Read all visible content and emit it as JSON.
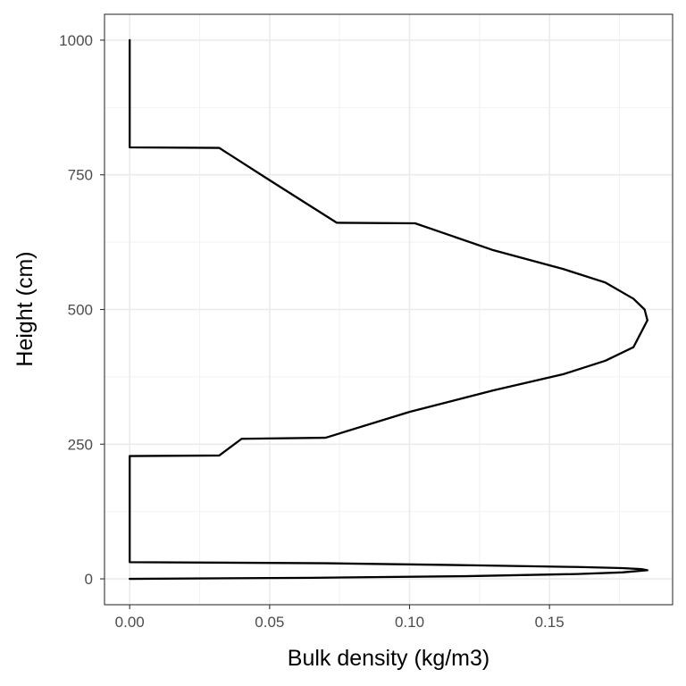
{
  "chart_data": {
    "type": "line",
    "xlabel": "Bulk density (kg/m3)",
    "ylabel": "Height (cm)",
    "xlim": [
      -0.009,
      0.194
    ],
    "ylim": [
      -48,
      1048
    ],
    "x_ticks": [
      0.0,
      0.05,
      0.1,
      0.15
    ],
    "x_tick_labels": [
      "0.00",
      "0.05",
      "0.10",
      "0.15"
    ],
    "y_ticks": [
      0,
      250,
      500,
      750,
      1000
    ],
    "y_tick_labels": [
      "0",
      "250",
      "500",
      "750",
      "1000"
    ],
    "grid": true,
    "legend": "none",
    "theme": "bw",
    "line_color": "#000000",
    "series": [
      {
        "x": [
          0.0,
          0.065,
          0.12,
          0.16,
          0.176,
          0.185,
          0.183,
          0.176,
          0.16,
          0.125,
          0.07,
          0.0,
          0.0,
          0.032,
          0.04,
          0.07,
          0.1,
          0.13,
          0.155,
          0.17,
          0.18,
          0.185,
          0.184,
          0.18,
          0.17,
          0.155,
          0.13,
          0.102,
          0.074,
          0.05,
          0.032,
          0.0,
          0.0
        ],
        "y": [
          0,
          2,
          5,
          9,
          12,
          16,
          18,
          20,
          22,
          25,
          29,
          31,
          228,
          229,
          260,
          262,
          310,
          350,
          380,
          405,
          430,
          480,
          500,
          520,
          550,
          575,
          610,
          660,
          661,
          740,
          800,
          801,
          1000
        ]
      }
    ]
  }
}
